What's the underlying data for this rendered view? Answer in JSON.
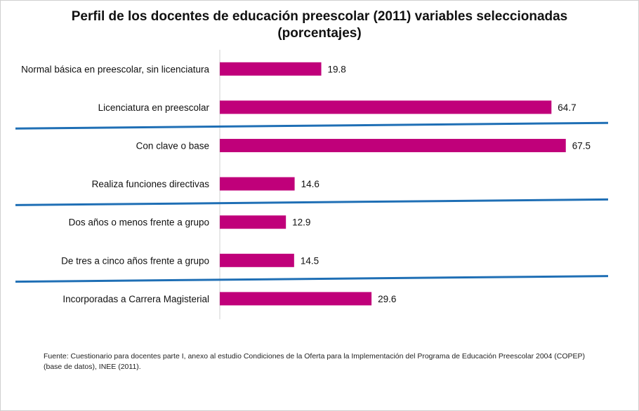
{
  "title_line1": "Perfil de los docentes de educación preescolar  (2011) variables seleccionadas",
  "title_line2": "(porcentajes)",
  "source_line1": "Fuente: Cuestionario para docentes parte I, anexo al estudio Condiciones de la Oferta para la Implementación del Programa de Educación Preescolar 2004 (COPEP)",
  "source_line2": "(base de datos), INEE (2011).",
  "colors": {
    "bar": "#c0007a",
    "separator": "#1f6fb5",
    "axis": "#d0d0d0"
  },
  "chart_data": {
    "type": "bar",
    "orientation": "horizontal",
    "categories": [
      "Normal básica en preescolar, sin licenciatura",
      "Licenciatura en preescolar",
      "Con clave o base",
      "Realiza funciones directivas",
      "Dos años o menos frente a grupo",
      "De tres a cinco años frente a grupo",
      "Incorporadas a Carrera Magisterial"
    ],
    "values": [
      19.8,
      64.7,
      67.5,
      14.6,
      12.9,
      14.5,
      29.6
    ],
    "data_labels": [
      "19.8",
      "64.7",
      "67.5",
      "14.6",
      "12.9",
      "14.5",
      "29.6"
    ],
    "xlim": [
      0,
      100
    ],
    "grid": false,
    "legend": "none",
    "group_separators_after_index": [
      1,
      3,
      5
    ]
  }
}
